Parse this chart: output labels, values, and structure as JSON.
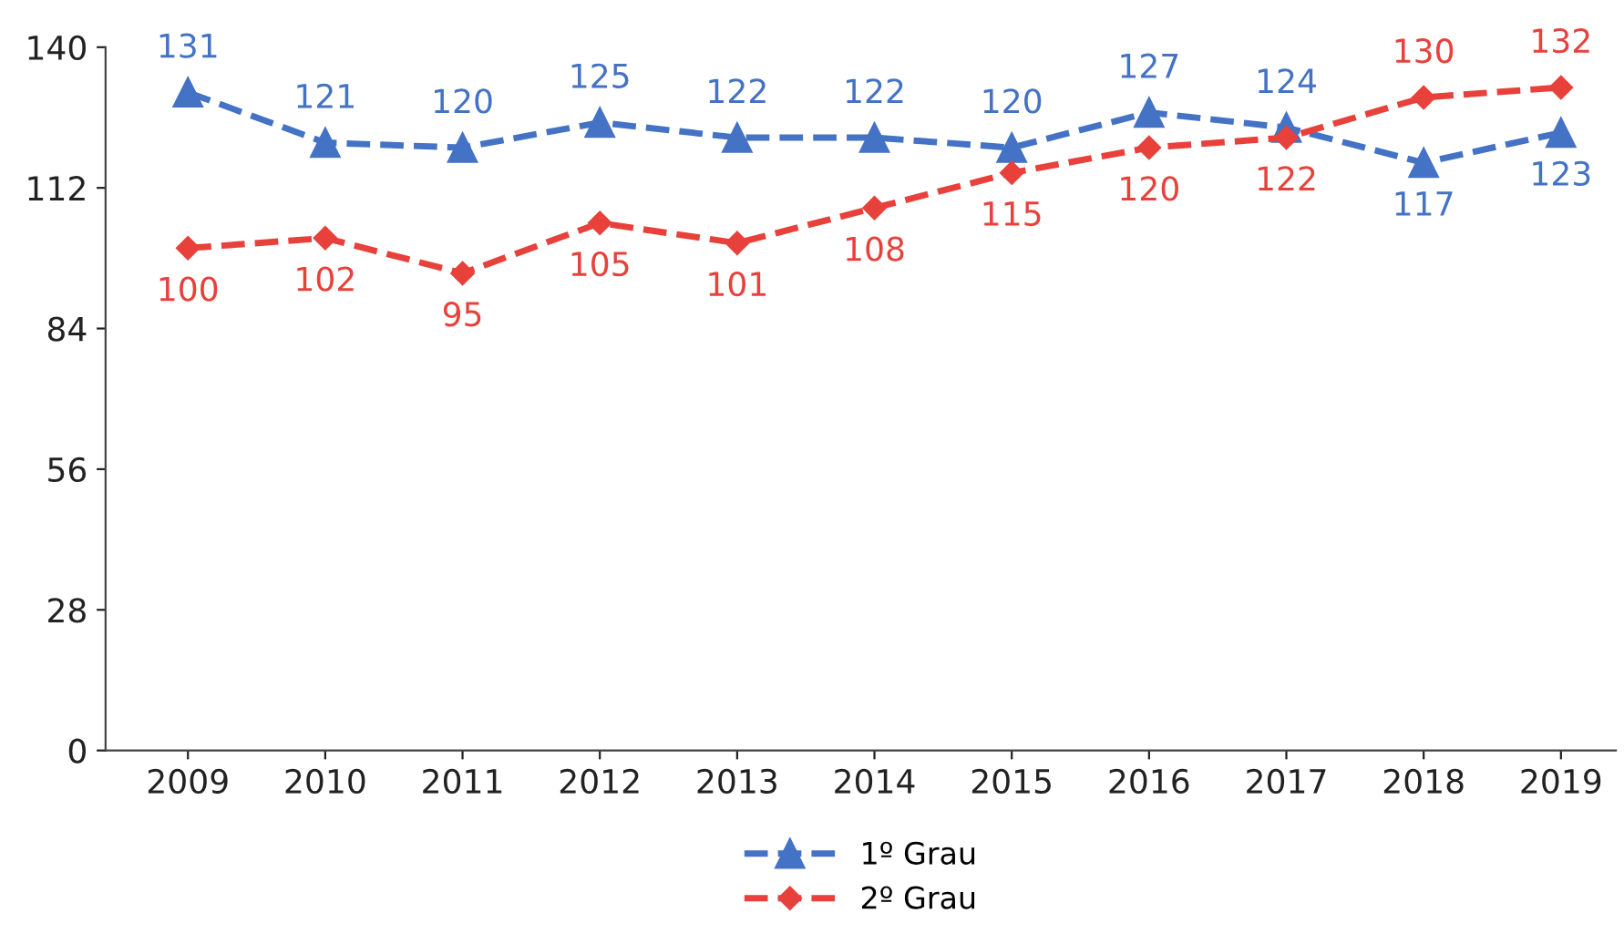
{
  "chart_data": {
    "type": "line",
    "categories": [
      "2009",
      "2010",
      "2011",
      "2012",
      "2013",
      "2014",
      "2015",
      "2016",
      "2017",
      "2018",
      "2019"
    ],
    "series": [
      {
        "name": "1º Grau",
        "color": "#4472c4",
        "marker": "triangle",
        "values": [
          131,
          121,
          120,
          125,
          122,
          122,
          120,
          127,
          124,
          117,
          123
        ]
      },
      {
        "name": "2º Grau",
        "color": "#e8413b",
        "marker": "diamond",
        "values": [
          100,
          102,
          95,
          105,
          101,
          108,
          115,
          120,
          122,
          130,
          132
        ]
      }
    ],
    "ylim": [
      0,
      140
    ],
    "yticks": [
      0,
      28,
      56,
      84,
      112,
      140
    ],
    "grid": false,
    "legend": "bottom",
    "line_style": "dashed",
    "data_labels": true
  }
}
